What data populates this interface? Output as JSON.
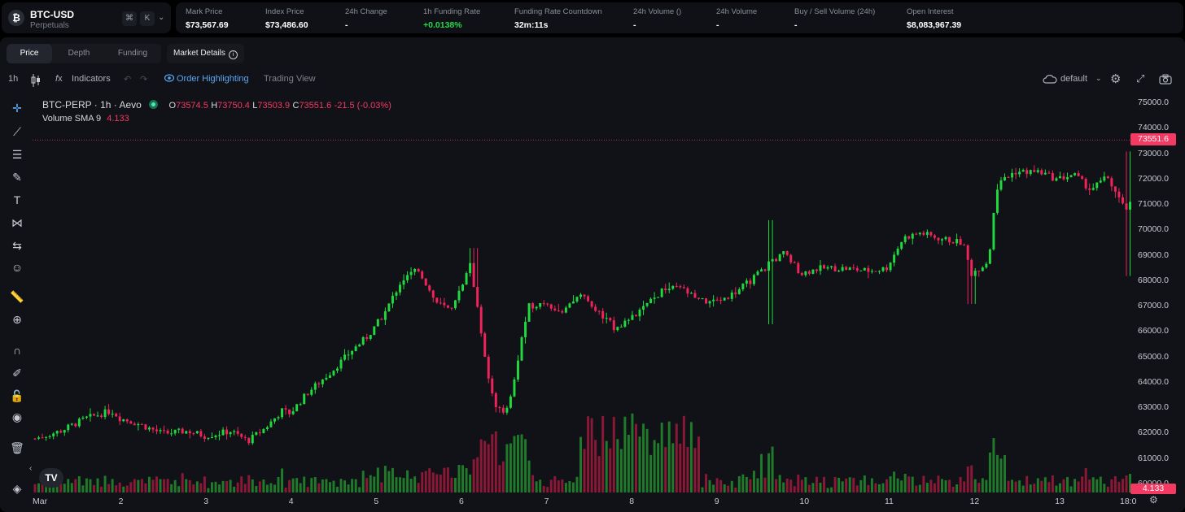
{
  "header": {
    "symbol": "BTC-USD",
    "subtitle": "Perpetuals",
    "logo_glyph": "₿",
    "kbd_cmd": "⌘",
    "kbd_k": "K",
    "stats": [
      {
        "label": "Mark Price",
        "value": "$73,567.69"
      },
      {
        "label": "Index Price",
        "value": "$73,486.60"
      },
      {
        "label": "24h Change",
        "value": "-"
      },
      {
        "label": "1h Funding Rate",
        "value": "+0.0138%"
      },
      {
        "label": "Funding Rate Countdown",
        "value": "32m:11s"
      },
      {
        "label": "24h Volume ()",
        "value": "-"
      },
      {
        "label": "24h Volume",
        "value": "-"
      },
      {
        "label": "Buy / Sell Volume (24h)",
        "value": "-"
      },
      {
        "label": "Open Interest",
        "value": "$8,083,967.39"
      }
    ]
  },
  "tabs": [
    "Price",
    "Depth",
    "Funding"
  ],
  "market_details": "Market Details",
  "toolbar": {
    "interval": "1h",
    "indicators": "Indicators",
    "order_highlighting": "Order Highlighting",
    "trading_view": "Trading View",
    "layout": "default"
  },
  "legend": {
    "symbol": "BTC-PERP · 1h · Aevo",
    "o_label": "O",
    "o": "73574.5",
    "h_label": "H",
    "h": "73750.4",
    "l_label": "L",
    "l": "73503.9",
    "c_label": "C",
    "c": "73551.6",
    "change": "-21.5 (-0.03%)",
    "volume_label": "Volume SMA 9",
    "volume_value": "4.133"
  },
  "colors": {
    "up": "#1fd93f",
    "down": "#f0235a",
    "vol_up": "#1f7a2a",
    "vol_down": "#8a1836"
  },
  "chart_data": {
    "type": "candlestick",
    "title": "BTC-PERP · 1h · Aevo",
    "x_ticks": [
      "Mar",
      "2",
      "3",
      "4",
      "5",
      "6",
      "7",
      "8",
      "9",
      "10",
      "11",
      "12",
      "13",
      "18:0"
    ],
    "y_ticks": [
      "75000.0",
      "74000.0",
      "73000.0",
      "72000.0",
      "71000.0",
      "70000.0",
      "69000.0",
      "68000.0",
      "67000.0",
      "66000.0",
      "65000.0",
      "64000.0",
      "63000.0",
      "62000.0",
      "61000.0",
      "60000.0"
    ],
    "ylim": [
      59500,
      75300
    ],
    "last_price": "73551.6",
    "volume_sma": "4.133",
    "close_path_keypoints": [
      [
        0,
        61800
      ],
      [
        0.3,
        62100
      ],
      [
        0.6,
        62600
      ],
      [
        0.9,
        62900
      ],
      [
        1.0,
        62600
      ],
      [
        1.2,
        62400
      ],
      [
        1.5,
        62000
      ],
      [
        1.8,
        62100
      ],
      [
        2.0,
        61900
      ],
      [
        2.3,
        62100
      ],
      [
        2.5,
        61700
      ],
      [
        2.7,
        62200
      ],
      [
        2.9,
        62900
      ],
      [
        3.0,
        62800
      ],
      [
        3.2,
        63600
      ],
      [
        3.5,
        64500
      ],
      [
        3.7,
        65200
      ],
      [
        3.9,
        65800
      ],
      [
        4.1,
        66700
      ],
      [
        4.3,
        68000
      ],
      [
        4.5,
        68500
      ],
      [
        4.7,
        67200
      ],
      [
        4.9,
        66800
      ],
      [
        5.0,
        67700
      ],
      [
        5.1,
        68800
      ],
      [
        5.2,
        67000
      ],
      [
        5.3,
        64500
      ],
      [
        5.4,
        63200
      ],
      [
        5.5,
        62800
      ],
      [
        5.6,
        63500
      ],
      [
        5.7,
        65500
      ],
      [
        5.8,
        67000
      ],
      [
        6.0,
        67200
      ],
      [
        6.2,
        66700
      ],
      [
        6.4,
        67500
      ],
      [
        6.6,
        66800
      ],
      [
        6.8,
        66200
      ],
      [
        7.0,
        66500
      ],
      [
        7.2,
        67100
      ],
      [
        7.4,
        67700
      ],
      [
        7.6,
        67700
      ],
      [
        7.8,
        67200
      ],
      [
        8.0,
        67200
      ],
      [
        8.2,
        67500
      ],
      [
        8.4,
        68000
      ],
      [
        8.6,
        68600
      ],
      [
        8.8,
        69100
      ],
      [
        9.0,
        68300
      ],
      [
        9.2,
        68500
      ],
      [
        9.5,
        68500
      ],
      [
        9.8,
        68400
      ],
      [
        10.0,
        68500
      ],
      [
        10.2,
        69700
      ],
      [
        10.4,
        69900
      ],
      [
        10.6,
        69700
      ],
      [
        10.9,
        69500
      ],
      [
        11.0,
        68300
      ],
      [
        11.2,
        68800
      ],
      [
        11.3,
        71700
      ],
      [
        11.5,
        72300
      ],
      [
        11.8,
        72300
      ],
      [
        12.0,
        72000
      ],
      [
        12.2,
        72200
      ],
      [
        12.4,
        71600
      ],
      [
        12.6,
        72100
      ],
      [
        12.8,
        70800
      ],
      [
        13.0,
        71400
      ],
      [
        13.2,
        72100
      ],
      [
        13.4,
        72500
      ],
      [
        13.6,
        73550
      ]
    ]
  }
}
